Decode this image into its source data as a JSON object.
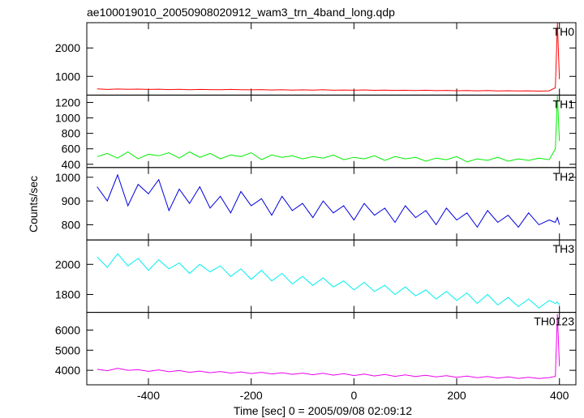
{
  "chart_data": {
    "type": "line",
    "title": "ae100019010_20050908020912_wam3_trn_4band_long.qdp",
    "xlabel": "Time [sec] 0 = 2005/09/08 02:09:12",
    "ylabel": "Counts/sec",
    "xlim": [
      -520,
      432
    ],
    "xticks": [
      -400,
      -200,
      0,
      200,
      400
    ],
    "x": [
      -500,
      -480,
      -460,
      -440,
      -420,
      -400,
      -380,
      -360,
      -340,
      -320,
      -300,
      -280,
      -260,
      -240,
      -220,
      -200,
      -180,
      -160,
      -140,
      -120,
      -100,
      -80,
      -60,
      -40,
      -20,
      0,
      20,
      40,
      60,
      80,
      100,
      120,
      140,
      160,
      180,
      200,
      220,
      240,
      260,
      280,
      300,
      320,
      340,
      360,
      380,
      392,
      396,
      400
    ],
    "series": [
      {
        "name": "TH0",
        "color": "#ff0000",
        "ylim": [
          340,
          2890
        ],
        "yticks": [
          1000,
          2000
        ],
        "values": [
          560,
          540,
          555,
          545,
          550,
          540,
          548,
          535,
          545,
          530,
          540,
          535,
          528,
          540,
          530,
          525,
          535,
          520,
          530,
          518,
          525,
          515,
          528,
          512,
          520,
          510,
          522,
          508,
          515,
          505,
          512,
          500,
          510,
          498,
          505,
          495,
          502,
          490,
          500,
          488,
          495,
          485,
          492,
          480,
          490,
          600,
          2880,
          900
        ]
      },
      {
        "name": "TH1",
        "color": "#00ee00",
        "ylim": [
          358,
          1295
        ],
        "yticks": [
          400,
          600,
          800,
          1000,
          1200
        ],
        "values": [
          500,
          540,
          480,
          560,
          470,
          530,
          510,
          550,
          480,
          560,
          490,
          540,
          470,
          520,
          500,
          550,
          460,
          520,
          490,
          510,
          470,
          500,
          480,
          520,
          460,
          490,
          470,
          510,
          450,
          500,
          470,
          490,
          440,
          480,
          460,
          500,
          430,
          470,
          450,
          490,
          440,
          470,
          450,
          480,
          460,
          600,
          1290,
          700
        ]
      },
      {
        "name": "TH2",
        "color": "#0000dd",
        "ylim": [
          736,
          1041
        ],
        "yticks": [
          800,
          900,
          1000
        ],
        "values": [
          960,
          900,
          1010,
          880,
          970,
          930,
          990,
          860,
          950,
          890,
          960,
          870,
          920,
          850,
          940,
          880,
          910,
          840,
          920,
          860,
          890,
          830,
          900,
          850,
          880,
          820,
          890,
          840,
          870,
          810,
          880,
          830,
          860,
          800,
          870,
          820,
          850,
          790,
          860,
          810,
          840,
          790,
          850,
          800,
          820,
          810,
          830,
          800
        ]
      },
      {
        "name": "TH3",
        "color": "#00eeee",
        "ylim": [
          1681,
          2162
        ],
        "yticks": [
          1800,
          2000
        ],
        "values": [
          2050,
          1980,
          2070,
          1990,
          2040,
          1960,
          2030,
          1970,
          2010,
          1940,
          2000,
          1950,
          1990,
          1920,
          1970,
          1900,
          1960,
          1890,
          1940,
          1870,
          1920,
          1860,
          1910,
          1850,
          1890,
          1830,
          1880,
          1820,
          1860,
          1800,
          1850,
          1790,
          1830,
          1770,
          1820,
          1760,
          1810,
          1740,
          1800,
          1730,
          1780,
          1720,
          1770,
          1710,
          1760,
          1740,
          1750,
          1730
        ]
      },
      {
        "name": "TH0123",
        "color": "#ee00ee",
        "ylim": [
          3280,
          6880
        ],
        "yticks": [
          4000,
          5000,
          6000
        ],
        "values": [
          4050,
          3980,
          4100,
          4000,
          4030,
          3950,
          4020,
          3930,
          3990,
          3900,
          3960,
          3880,
          3940,
          3860,
          3920,
          3840,
          3900,
          3820,
          3880,
          3800,
          3860,
          3780,
          3850,
          3760,
          3830,
          3740,
          3810,
          3720,
          3790,
          3700,
          3770,
          3690,
          3750,
          3670,
          3730,
          3650,
          3710,
          3630,
          3690,
          3610,
          3670,
          3600,
          3650,
          3590,
          3640,
          3700,
          6800,
          4200
        ]
      }
    ]
  }
}
